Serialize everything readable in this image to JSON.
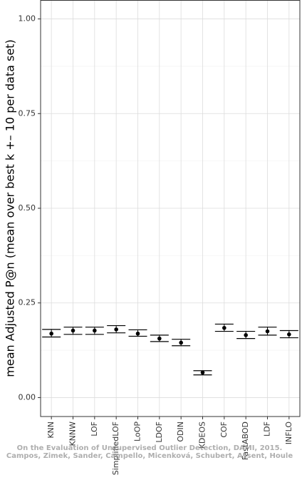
{
  "chart_data": {
    "type": "errorpoint",
    "y_label": "mean Adjusted P@n (mean over best k +– 10 per data set)",
    "categories": [
      "KNN",
      "KNNW",
      "LOF",
      "SimplifiedLOF",
      "LoOP",
      "LDOF",
      "ODIN",
      "KDEOS",
      "COF",
      "FastABOD",
      "LDF",
      "INFLO"
    ],
    "values": [
      0.169,
      0.177,
      0.177,
      0.18,
      0.169,
      0.156,
      0.145,
      0.066,
      0.184,
      0.165,
      0.175,
      0.167
    ],
    "lower": [
      0.16,
      0.167,
      0.167,
      0.171,
      0.162,
      0.148,
      0.137,
      0.06,
      0.175,
      0.156,
      0.165,
      0.158
    ],
    "upper": [
      0.18,
      0.186,
      0.186,
      0.19,
      0.179,
      0.165,
      0.154,
      0.071,
      0.194,
      0.175,
      0.186,
      0.177
    ],
    "color": "#000000",
    "ylim": [
      -0.05,
      1.05
    ],
    "yticks": [
      {
        "value": 0,
        "label": "0.00"
      },
      {
        "value": 0.25,
        "label": "0.25"
      },
      {
        "value": 0.5,
        "label": "0.50"
      },
      {
        "value": 0.75,
        "label": "0.75"
      },
      {
        "value": 1,
        "label": "1.00"
      }
    ],
    "grid": true,
    "annotations": [
      "On the Evaluation of Unsupervised Outlier Detection, DAMI, 2015.",
      "Campos, Zimek, Sander, Campello, Micenková, Schubert, Assent, Houle"
    ]
  }
}
